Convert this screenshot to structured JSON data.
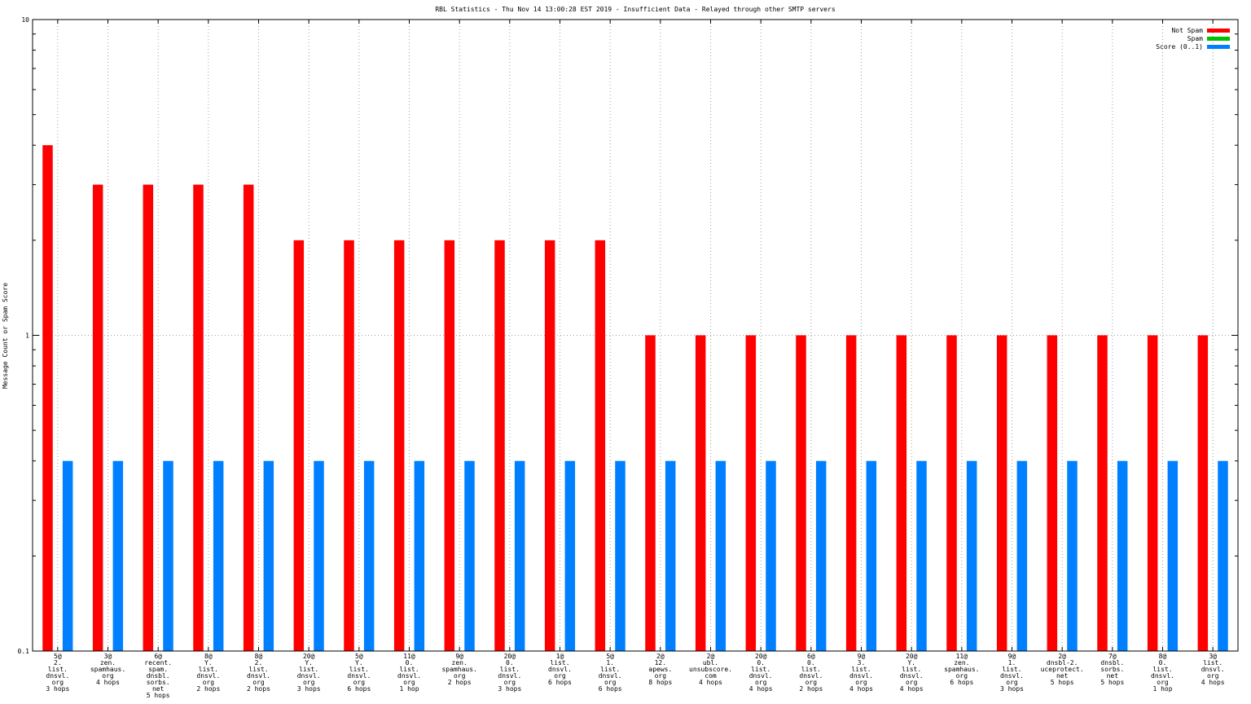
{
  "chart_data": {
    "type": "bar",
    "title": "RBL Statistics - Thu Nov 14 13:00:28 EST 2019 - Insufficient Data - Relayed through other SMTP servers",
    "ylabel": "Message Count or Spam Score",
    "xlabel": "",
    "yscale": "log",
    "ylim": [
      0.1,
      10
    ],
    "yticks": [
      "10",
      "1",
      "0.1"
    ],
    "grid": true,
    "legend_position": "top-right",
    "categories": [
      [
        "5@",
        "2.",
        "list.",
        "dnsvl.",
        "org",
        "3 hops"
      ],
      [
        "3@",
        "zen.",
        "spamhaus.",
        "org",
        "4 hops"
      ],
      [
        "6@",
        "recent.",
        "spam.",
        "dnsbl.",
        "sorbs.",
        "net",
        "5 hops"
      ],
      [
        "8@",
        "Y.",
        "list.",
        "dnsvl.",
        "org",
        "2 hops"
      ],
      [
        "8@",
        "2.",
        "list.",
        "dnsvl.",
        "org",
        "2 hops"
      ],
      [
        "20@",
        "Y.",
        "list.",
        "dnsvl.",
        "org",
        "3 hops"
      ],
      [
        "5@",
        "Y.",
        "list.",
        "dnsvl.",
        "org",
        "6 hops"
      ],
      [
        "11@",
        "0.",
        "list.",
        "dnsvl.",
        "org",
        "1 hop"
      ],
      [
        "9@",
        "zen.",
        "spamhaus.",
        "org",
        "2 hops"
      ],
      [
        "20@",
        "0.",
        "list.",
        "dnsvl.",
        "org",
        "3 hops"
      ],
      [
        "1@",
        "list.",
        "dnsvl.",
        "org",
        "6 hops"
      ],
      [
        "5@",
        "1.",
        "list.",
        "dnsvl.",
        "org",
        "6 hops"
      ],
      [
        "2@",
        "12.",
        "apews.",
        "org",
        "8 hops"
      ],
      [
        "2@",
        "ubl.",
        "unsubscore.",
        "com",
        "4 hops"
      ],
      [
        "20@",
        "0.",
        "list.",
        "dnsvl.",
        "org",
        "4 hops"
      ],
      [
        "6@",
        "0.",
        "list.",
        "dnsvl.",
        "org",
        "2 hops"
      ],
      [
        "9@",
        "3.",
        "list.",
        "dnsvl.",
        "org",
        "4 hops"
      ],
      [
        "20@",
        "Y.",
        "list.",
        "dnsvl.",
        "org",
        "4 hops"
      ],
      [
        "11@",
        "zen.",
        "spamhaus.",
        "org",
        "6 hops"
      ],
      [
        "9@",
        "1.",
        "list.",
        "dnsvl.",
        "org",
        "3 hops"
      ],
      [
        "2@",
        "dnsbl-2.",
        "uceprotect.",
        "net",
        "5 hops"
      ],
      [
        "7@",
        "dnsbl.",
        "sorbs.",
        "net",
        "5 hops"
      ],
      [
        "8@",
        "0.",
        "list.",
        "dnsvl.",
        "org",
        "1 hop"
      ],
      [
        "3@",
        "list.",
        "dnsvl.",
        "org",
        "4 hops"
      ]
    ],
    "series": [
      {
        "name": "Not Spam",
        "color": "#ff0000",
        "values": [
          4,
          3,
          3,
          3,
          3,
          2,
          2,
          2,
          2,
          2,
          2,
          2,
          1,
          1,
          1,
          1,
          1,
          1,
          1,
          1,
          1,
          1,
          1,
          1
        ]
      },
      {
        "name": "Spam",
        "color": "#00c000",
        "values": [
          0,
          0,
          0,
          0,
          0,
          0,
          0,
          0,
          0,
          0,
          0,
          0,
          0,
          0,
          0,
          0,
          0,
          0,
          0,
          0,
          0,
          0,
          0,
          0
        ]
      },
      {
        "name": "Score (0..1)",
        "color": "#0080ff",
        "values": [
          0.4,
          0.4,
          0.4,
          0.4,
          0.4,
          0.4,
          0.4,
          0.4,
          0.4,
          0.4,
          0.4,
          0.4,
          0.4,
          0.4,
          0.4,
          0.4,
          0.4,
          0.4,
          0.4,
          0.4,
          0.4,
          0.4,
          0.4,
          0.4
        ]
      }
    ]
  }
}
